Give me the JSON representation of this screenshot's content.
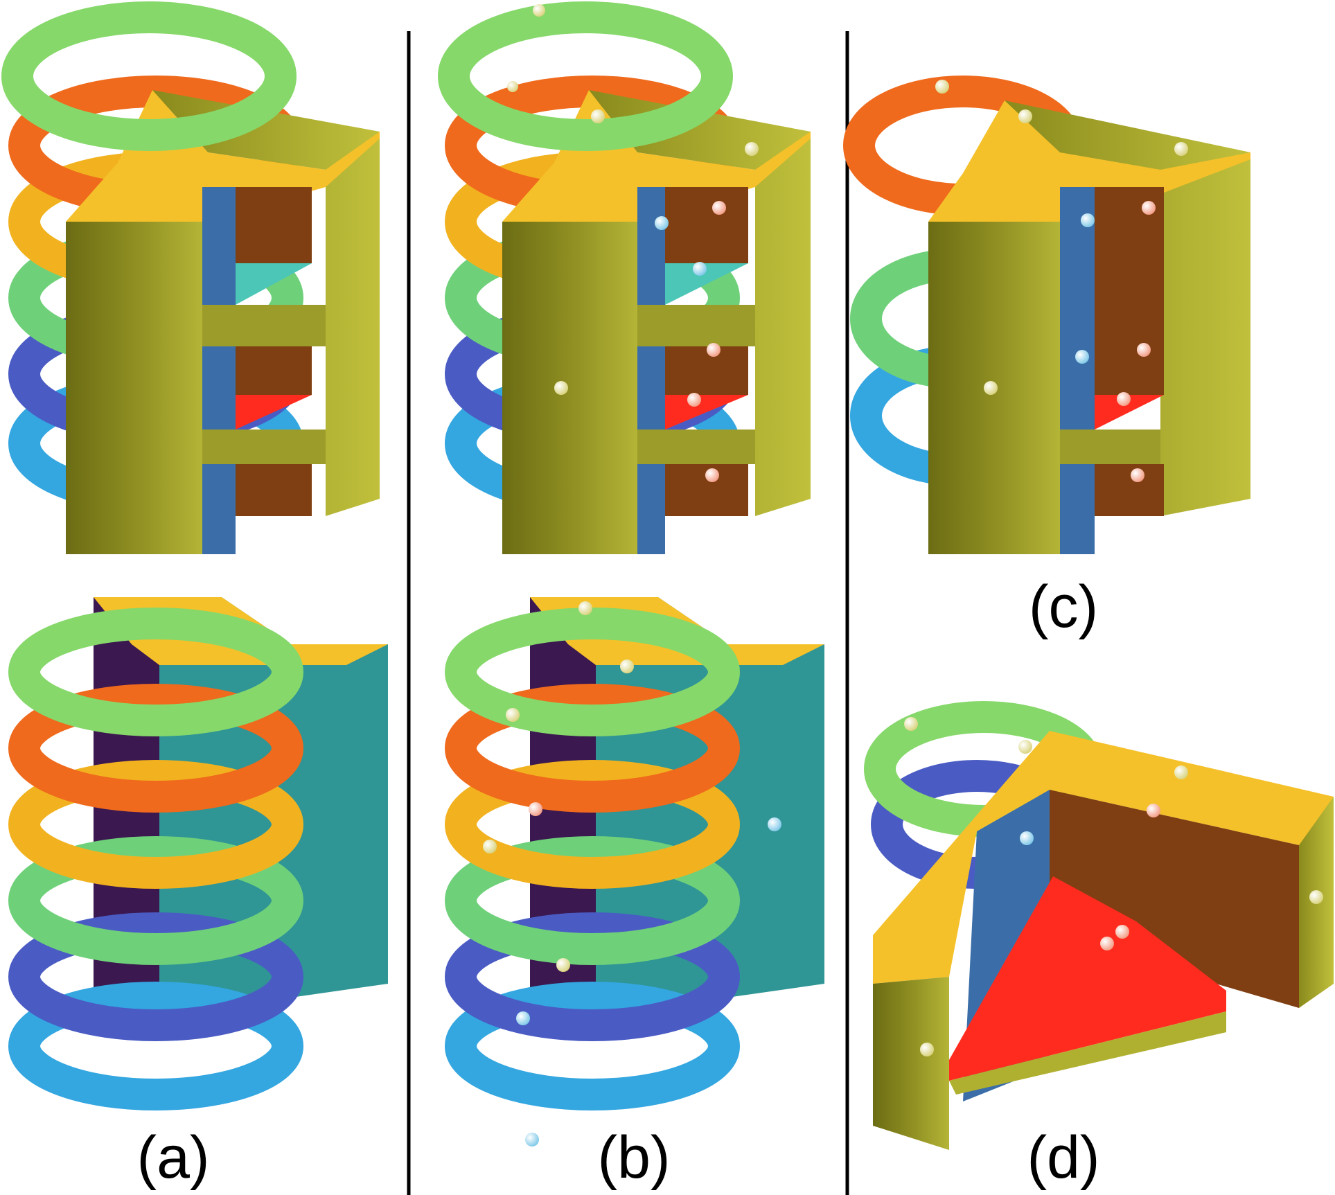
{
  "panels": {
    "a": {
      "label": "(a)"
    },
    "b": {
      "label": "(b)"
    },
    "c": {
      "label": "(c)"
    },
    "d": {
      "label": "(d)"
    }
  },
  "colors": {
    "background": "#ffffff",
    "divider": "#000000",
    "block_top": "#f5c12a",
    "block_side": "#8f8f1f",
    "block_side_dark": "#6f6f14",
    "inner_brown": "#7f3f12",
    "inner_blue": "#3b6ea8",
    "inner_teal": "#4cc6b6",
    "inner_red": "#ff2b1f",
    "back_teal": "#2f9595",
    "back_purple": "#3b1850",
    "ring_green": "#86d86a",
    "ring_orange": "#ef6a1c",
    "ring_yellow": "#f2b21f",
    "ring_indigo": "#4a5cc4",
    "ring_cyan": "#34a6e0",
    "marker": "#fff59a"
  },
  "icons": [
    "torus-ring",
    "sphere-marker",
    "cylindrical-block"
  ]
}
